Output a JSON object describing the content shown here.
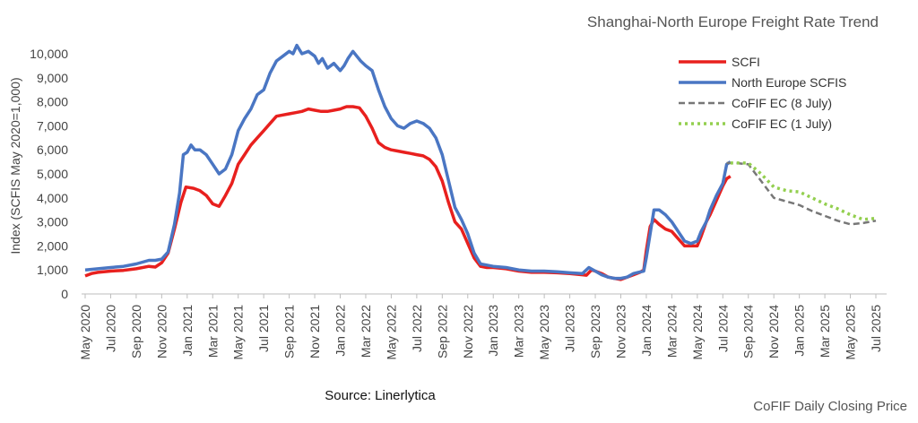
{
  "chart_data": {
    "type": "line",
    "title": "Shanghai-North Europe Freight Rate Trend",
    "ylabel": "Index (SCFIS May 2020=1,000)",
    "xlabel": "",
    "source": "Source: Linerlytica",
    "footer": "CoFIF Daily Closing Price",
    "ylim": [
      0,
      10000
    ],
    "xlim": [
      0,
      62
    ],
    "y_ticks": [
      {
        "value": 0,
        "label": "0"
      },
      {
        "value": 1000,
        "label": "1,000"
      },
      {
        "value": 2000,
        "label": "2,000"
      },
      {
        "value": 3000,
        "label": "3,000"
      },
      {
        "value": 4000,
        "label": "4,000"
      },
      {
        "value": 5000,
        "label": "5,000"
      },
      {
        "value": 6000,
        "label": "6,000"
      },
      {
        "value": 7000,
        "label": "7,000"
      },
      {
        "value": 8000,
        "label": "8,000"
      },
      {
        "value": 9000,
        "label": "9,000"
      },
      {
        "value": 10000,
        "label": "10,000"
      }
    ],
    "x_ticks": [
      {
        "value": 0,
        "label": "May 2020"
      },
      {
        "value": 2,
        "label": "Jul 2020"
      },
      {
        "value": 4,
        "label": "Sep 2020"
      },
      {
        "value": 6,
        "label": "Nov 2020"
      },
      {
        "value": 8,
        "label": "Jan 2021"
      },
      {
        "value": 10,
        "label": "Mar 2021"
      },
      {
        "value": 12,
        "label": "May 2021"
      },
      {
        "value": 14,
        "label": "Jul 2021"
      },
      {
        "value": 16,
        "label": "Sep 2021"
      },
      {
        "value": 18,
        "label": "Nov 2021"
      },
      {
        "value": 20,
        "label": "Jan 2022"
      },
      {
        "value": 22,
        "label": "Mar 2022"
      },
      {
        "value": 24,
        "label": "May 2022"
      },
      {
        "value": 26,
        "label": "Jul 2022"
      },
      {
        "value": 28,
        "label": "Sep 2022"
      },
      {
        "value": 30,
        "label": "Nov 2022"
      },
      {
        "value": 32,
        "label": "Jan 2023"
      },
      {
        "value": 34,
        "label": "Mar 2023"
      },
      {
        "value": 36,
        "label": "May 2023"
      },
      {
        "value": 38,
        "label": "Jul 2023"
      },
      {
        "value": 40,
        "label": "Sep 2023"
      },
      {
        "value": 42,
        "label": "Nov 2023"
      },
      {
        "value": 44,
        "label": "Jan 2024"
      },
      {
        "value": 46,
        "label": "Mar 2024"
      },
      {
        "value": 48,
        "label": "May 2024"
      },
      {
        "value": 50,
        "label": "Jul 2024"
      },
      {
        "value": 52,
        "label": "Sep 2024"
      },
      {
        "value": 54,
        "label": "Nov 2024"
      },
      {
        "value": 56,
        "label": "Jan 2025"
      },
      {
        "value": 58,
        "label": "Mar 2025"
      },
      {
        "value": 60,
        "label": "May 2025"
      },
      {
        "value": 62,
        "label": "Jul 2025"
      }
    ],
    "legend_position": "top-right",
    "series": [
      {
        "name": "SCFI",
        "color": "#e8201e",
        "style": "solid",
        "points": [
          [
            0,
            750
          ],
          [
            0.5,
            850
          ],
          [
            1,
            900
          ],
          [
            2,
            950
          ],
          [
            3,
            980
          ],
          [
            4,
            1050
          ],
          [
            5,
            1150
          ],
          [
            5.5,
            1120
          ],
          [
            6,
            1300
          ],
          [
            6.5,
            1700
          ],
          [
            7,
            2700
          ],
          [
            7.5,
            3800
          ],
          [
            7.9,
            4450
          ],
          [
            8.5,
            4400
          ],
          [
            9,
            4300
          ],
          [
            9.5,
            4100
          ],
          [
            10,
            3750
          ],
          [
            10.5,
            3650
          ],
          [
            11,
            4100
          ],
          [
            11.5,
            4600
          ],
          [
            12,
            5400
          ],
          [
            12.5,
            5800
          ],
          [
            13,
            6200
          ],
          [
            13.5,
            6500
          ],
          [
            14,
            6800
          ],
          [
            14.5,
            7100
          ],
          [
            15,
            7400
          ],
          [
            15.5,
            7450
          ],
          [
            16,
            7500
          ],
          [
            16.5,
            7550
          ],
          [
            17,
            7600
          ],
          [
            17.5,
            7700
          ],
          [
            18,
            7650
          ],
          [
            18.5,
            7600
          ],
          [
            19,
            7600
          ],
          [
            19.5,
            7650
          ],
          [
            20,
            7700
          ],
          [
            20.5,
            7800
          ],
          [
            21,
            7800
          ],
          [
            21.5,
            7750
          ],
          [
            22,
            7400
          ],
          [
            22.5,
            6900
          ],
          [
            23,
            6300
          ],
          [
            23.5,
            6100
          ],
          [
            24,
            6000
          ],
          [
            24.5,
            5950
          ],
          [
            25,
            5900
          ],
          [
            25.5,
            5850
          ],
          [
            26,
            5800
          ],
          [
            26.5,
            5750
          ],
          [
            27,
            5600
          ],
          [
            27.5,
            5300
          ],
          [
            28,
            4700
          ],
          [
            28.5,
            3800
          ],
          [
            29,
            3000
          ],
          [
            29.5,
            2700
          ],
          [
            30,
            2100
          ],
          [
            30.5,
            1500
          ],
          [
            31,
            1150
          ],
          [
            31.5,
            1100
          ],
          [
            32,
            1100
          ],
          [
            33,
            1050
          ],
          [
            34,
            950
          ],
          [
            35,
            900
          ],
          [
            36,
            900
          ],
          [
            37,
            880
          ],
          [
            38,
            850
          ],
          [
            39,
            800
          ],
          [
            39.3,
            780
          ],
          [
            39.7,
            1000
          ],
          [
            40,
            950
          ],
          [
            40.5,
            850
          ],
          [
            41,
            700
          ],
          [
            41.5,
            650
          ],
          [
            42,
            600
          ],
          [
            42.5,
            700
          ],
          [
            43,
            800
          ],
          [
            43.5,
            900
          ],
          [
            43.8,
            1000
          ],
          [
            44,
            1800
          ],
          [
            44.3,
            2800
          ],
          [
            44.6,
            3100
          ],
          [
            45,
            2900
          ],
          [
            45.5,
            2700
          ],
          [
            46,
            2600
          ],
          [
            46.5,
            2300
          ],
          [
            47,
            2000
          ],
          [
            47.5,
            2000
          ],
          [
            48,
            2000
          ],
          [
            48.3,
            2400
          ],
          [
            48.7,
            3000
          ],
          [
            49,
            3300
          ],
          [
            49.5,
            3900
          ],
          [
            50,
            4500
          ],
          [
            50.3,
            4800
          ],
          [
            50.6,
            4900
          ]
        ]
      },
      {
        "name": "North Europe SCFIS",
        "color": "#4a76c3",
        "style": "solid",
        "points": [
          [
            0,
            1000
          ],
          [
            1,
            1050
          ],
          [
            2,
            1100
          ],
          [
            3,
            1150
          ],
          [
            4,
            1250
          ],
          [
            5,
            1400
          ],
          [
            5.5,
            1400
          ],
          [
            6,
            1450
          ],
          [
            6.5,
            1750
          ],
          [
            7,
            2900
          ],
          [
            7.4,
            4200
          ],
          [
            7.7,
            5800
          ],
          [
            8,
            5900
          ],
          [
            8.3,
            6200
          ],
          [
            8.6,
            6000
          ],
          [
            9,
            6000
          ],
          [
            9.5,
            5800
          ],
          [
            10,
            5400
          ],
          [
            10.5,
            5000
          ],
          [
            11,
            5200
          ],
          [
            11.5,
            5800
          ],
          [
            12,
            6800
          ],
          [
            12.5,
            7300
          ],
          [
            13,
            7700
          ],
          [
            13.5,
            8300
          ],
          [
            14,
            8500
          ],
          [
            14.5,
            9200
          ],
          [
            15,
            9700
          ],
          [
            15.5,
            9900
          ],
          [
            16,
            10100
          ],
          [
            16.3,
            10000
          ],
          [
            16.6,
            10350
          ],
          [
            17,
            10000
          ],
          [
            17.5,
            10100
          ],
          [
            18,
            9900
          ],
          [
            18.3,
            9600
          ],
          [
            18.6,
            9800
          ],
          [
            19,
            9400
          ],
          [
            19.5,
            9600
          ],
          [
            20,
            9300
          ],
          [
            20.3,
            9500
          ],
          [
            20.6,
            9800
          ],
          [
            21,
            10100
          ],
          [
            21.3,
            9900
          ],
          [
            21.6,
            9700
          ],
          [
            22,
            9500
          ],
          [
            22.5,
            9300
          ],
          [
            23,
            8500
          ],
          [
            23.5,
            7800
          ],
          [
            24,
            7300
          ],
          [
            24.5,
            7000
          ],
          [
            25,
            6900
          ],
          [
            25.5,
            7100
          ],
          [
            26,
            7200
          ],
          [
            26.5,
            7100
          ],
          [
            27,
            6900
          ],
          [
            27.5,
            6500
          ],
          [
            28,
            5800
          ],
          [
            28.5,
            4700
          ],
          [
            29,
            3600
          ],
          [
            29.5,
            3100
          ],
          [
            30,
            2500
          ],
          [
            30.5,
            1700
          ],
          [
            31,
            1250
          ],
          [
            31.5,
            1200
          ],
          [
            32,
            1150
          ],
          [
            33,
            1100
          ],
          [
            34,
            1000
          ],
          [
            35,
            950
          ],
          [
            36,
            950
          ],
          [
            37,
            920
          ],
          [
            38,
            880
          ],
          [
            39,
            850
          ],
          [
            39.5,
            1100
          ],
          [
            40,
            950
          ],
          [
            40.5,
            800
          ],
          [
            41,
            700
          ],
          [
            41.5,
            650
          ],
          [
            42,
            650
          ],
          [
            42.5,
            700
          ],
          [
            43,
            850
          ],
          [
            43.8,
            950
          ],
          [
            44,
            1500
          ],
          [
            44.3,
            2500
          ],
          [
            44.6,
            3500
          ],
          [
            45,
            3500
          ],
          [
            45.5,
            3300
          ],
          [
            46,
            3000
          ],
          [
            46.5,
            2600
          ],
          [
            47,
            2200
          ],
          [
            47.5,
            2100
          ],
          [
            48,
            2200
          ],
          [
            48.3,
            2600
          ],
          [
            48.7,
            3000
          ],
          [
            49,
            3500
          ],
          [
            49.5,
            4100
          ],
          [
            50,
            4600
          ],
          [
            50.3,
            5400
          ],
          [
            50.6,
            5500
          ]
        ]
      },
      {
        "name": "CoFIF EC (8 July)",
        "color": "#777777",
        "style": "dashed",
        "points": [
          [
            50.3,
            5450
          ],
          [
            51,
            5450
          ],
          [
            52,
            5400
          ],
          [
            53,
            4700
          ],
          [
            54,
            4000
          ],
          [
            55,
            3850
          ],
          [
            56,
            3700
          ],
          [
            57,
            3450
          ],
          [
            58,
            3250
          ],
          [
            59,
            3050
          ],
          [
            60,
            2900
          ],
          [
            61,
            2950
          ],
          [
            62,
            3050
          ]
        ]
      },
      {
        "name": "CoFIF EC (1 July)",
        "color": "#93cf4f",
        "style": "dotted",
        "points": [
          [
            50.6,
            5450
          ],
          [
            51,
            5450
          ],
          [
            52,
            5450
          ],
          [
            53,
            5000
          ],
          [
            54,
            4450
          ],
          [
            55,
            4300
          ],
          [
            56,
            4250
          ],
          [
            57,
            4000
          ],
          [
            58,
            3750
          ],
          [
            59,
            3550
          ],
          [
            60,
            3300
          ],
          [
            61,
            3100
          ],
          [
            62,
            3150
          ]
        ]
      }
    ]
  }
}
